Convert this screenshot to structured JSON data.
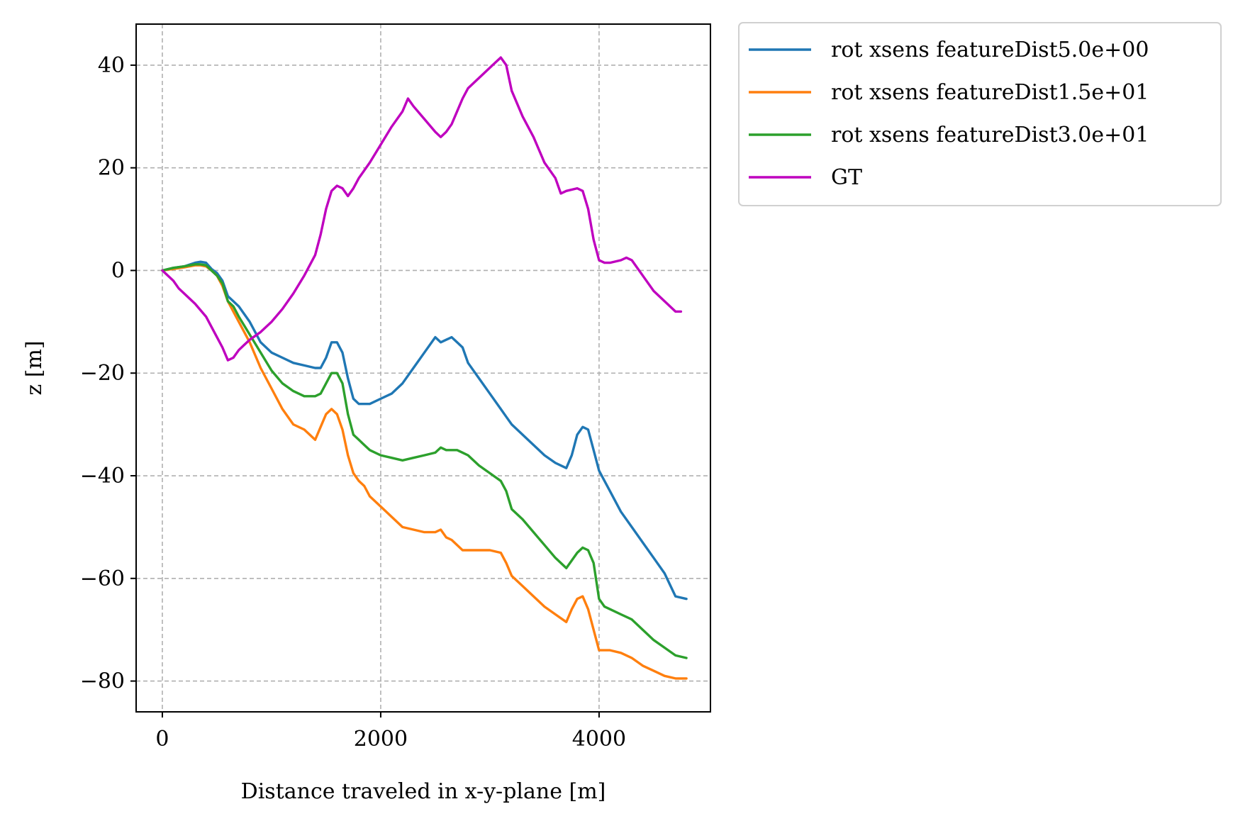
{
  "chart_data": {
    "type": "line",
    "xlabel": "Distance traveled in x-y-plane [m]",
    "ylabel": "z [m]",
    "xlim": [
      -240,
      5020
    ],
    "ylim": [
      -86,
      48
    ],
    "xticks": [
      0,
      2000,
      4000
    ],
    "yticks": [
      40,
      20,
      0,
      -20,
      -40,
      -60,
      -80
    ],
    "xtick_labels": [
      "0",
      "2000",
      "4000"
    ],
    "ytick_labels": [
      "40",
      "20",
      "0",
      "−20",
      "−40",
      "−60",
      "−80"
    ],
    "grid": true,
    "legend_position": "outside-top-right",
    "series": [
      {
        "name": "rot xsens featureDist5.0e+00",
        "color": "#1f77b4",
        "x": [
          0,
          100,
          200,
          300,
          350,
          400,
          450,
          500,
          550,
          600,
          650,
          700,
          800,
          900,
          1000,
          1100,
          1200,
          1300,
          1400,
          1450,
          1500,
          1550,
          1600,
          1650,
          1700,
          1750,
          1800,
          1850,
          1900,
          2000,
          2100,
          2200,
          2300,
          2400,
          2500,
          2550,
          2600,
          2650,
          2700,
          2750,
          2800,
          2900,
          3000,
          3100,
          3150,
          3200,
          3300,
          3400,
          3500,
          3600,
          3700,
          3750,
          3800,
          3850,
          3900,
          3950,
          4000,
          4050,
          4100,
          4200,
          4300,
          4400,
          4500,
          4600,
          4700,
          4800
        ],
        "y": [
          0,
          0.5,
          0.8,
          1.5,
          1.7,
          1.5,
          0.3,
          -0.5,
          -2,
          -5,
          -6,
          -7,
          -10,
          -14,
          -16,
          -17,
          -18,
          -18.5,
          -19,
          -19,
          -17,
          -14,
          -14,
          -16,
          -21,
          -25,
          -26,
          -26,
          -26,
          -25,
          -24,
          -22,
          -19,
          -16,
          -13,
          -14,
          -13.5,
          -13,
          -14,
          -15,
          -18,
          -21,
          -24,
          -27,
          -28.5,
          -30,
          -32,
          -34,
          -36,
          -37.5,
          -38.5,
          -36,
          -32,
          -30.5,
          -31,
          -35,
          -39,
          -41,
          -43,
          -47,
          -50,
          -53,
          -56,
          -59,
          -63.5,
          -64
        ]
      },
      {
        "name": "rot xsens featureDist1.5e+01",
        "color": "#ff7f0e",
        "x": [
          0,
          100,
          200,
          300,
          350,
          400,
          450,
          500,
          550,
          600,
          650,
          700,
          800,
          900,
          1000,
          1100,
          1200,
          1300,
          1400,
          1450,
          1500,
          1550,
          1600,
          1650,
          1700,
          1750,
          1800,
          1850,
          1900,
          2000,
          2100,
          2200,
          2300,
          2400,
          2500,
          2550,
          2600,
          2650,
          2700,
          2750,
          2800,
          2900,
          3000,
          3100,
          3150,
          3200,
          3300,
          3400,
          3500,
          3600,
          3700,
          3750,
          3800,
          3850,
          3900,
          3950,
          4000,
          4050,
          4100,
          4200,
          4300,
          4400,
          4500,
          4600,
          4700,
          4800
        ],
        "y": [
          0,
          0.3,
          0.6,
          1,
          1,
          0.8,
          0,
          -1,
          -3,
          -6,
          -8,
          -10,
          -14,
          -19,
          -23,
          -27,
          -30,
          -31,
          -33,
          -30.5,
          -28,
          -27,
          -28,
          -31,
          -36,
          -39.5,
          -41,
          -42,
          -44,
          -46,
          -48,
          -50,
          -50.5,
          -51,
          -51,
          -50.5,
          -52,
          -52.5,
          -53.5,
          -54.5,
          -54.5,
          -54.5,
          -54.5,
          -55,
          -57,
          -59.5,
          -61.5,
          -63.5,
          -65.5,
          -67,
          -68.5,
          -66,
          -64,
          -63.5,
          -66,
          -70,
          -74,
          -74,
          -74,
          -74.5,
          -75.5,
          -77,
          -78,
          -79,
          -79.5,
          -79.5
        ]
      },
      {
        "name": "rot xsens featureDist3.0e+01",
        "color": "#2ca02c",
        "x": [
          0,
          100,
          200,
          300,
          350,
          400,
          450,
          500,
          550,
          600,
          650,
          700,
          800,
          900,
          1000,
          1100,
          1200,
          1300,
          1400,
          1450,
          1500,
          1550,
          1600,
          1650,
          1700,
          1750,
          1800,
          1850,
          1900,
          2000,
          2100,
          2200,
          2300,
          2400,
          2500,
          2550,
          2600,
          2650,
          2700,
          2750,
          2800,
          2900,
          3000,
          3100,
          3150,
          3200,
          3300,
          3400,
          3500,
          3600,
          3700,
          3750,
          3800,
          3850,
          3900,
          3950,
          4000,
          4050,
          4100,
          4200,
          4300,
          4400,
          4500,
          4600,
          4700,
          4800
        ],
        "y": [
          0,
          0.5,
          0.8,
          1.2,
          1.2,
          1,
          0,
          -1,
          -2.5,
          -6,
          -7,
          -9,
          -12.5,
          -16,
          -19.5,
          -22,
          -23.5,
          -24.5,
          -24.5,
          -24,
          -22,
          -20,
          -20,
          -22,
          -28,
          -32,
          -33,
          -34,
          -35,
          -36,
          -36.5,
          -37,
          -36.5,
          -36,
          -35.5,
          -34.5,
          -35,
          -35,
          -35,
          -35.5,
          -36,
          -38,
          -39.5,
          -41,
          -43,
          -46.5,
          -48.5,
          -51,
          -53.5,
          -56,
          -58,
          -56.5,
          -55,
          -54,
          -54.5,
          -57,
          -64,
          -65.5,
          -66,
          -67,
          -68,
          -70,
          -72,
          -73.5,
          -75,
          -75.5
        ]
      },
      {
        "name": "GT",
        "color": "#bf00bf",
        "x": [
          0,
          100,
          150,
          200,
          300,
          400,
          450,
          500,
          550,
          600,
          650,
          700,
          750,
          800,
          900,
          1000,
          1100,
          1200,
          1300,
          1400,
          1450,
          1500,
          1550,
          1600,
          1650,
          1700,
          1750,
          1800,
          1900,
          2000,
          2100,
          2200,
          2250,
          2300,
          2400,
          2500,
          2550,
          2600,
          2650,
          2700,
          2750,
          2800,
          2900,
          3000,
          3050,
          3100,
          3150,
          3200,
          3300,
          3400,
          3500,
          3600,
          3650,
          3700,
          3800,
          3850,
          3900,
          3950,
          4000,
          4050,
          4100,
          4200,
          4250,
          4300,
          4400,
          4500,
          4600,
          4700,
          4750
        ],
        "y": [
          0,
          -2,
          -3.5,
          -4.5,
          -6.5,
          -9,
          -11,
          -13,
          -15,
          -17.5,
          -17,
          -15.5,
          -14.5,
          -13.5,
          -12,
          -10,
          -7.5,
          -4.5,
          -1,
          3,
          7,
          12,
          15.5,
          16.5,
          16,
          14.5,
          16,
          18,
          21,
          24.5,
          28,
          31,
          33.5,
          32,
          29.5,
          27,
          26,
          27,
          28.5,
          31,
          33.5,
          35.5,
          37.5,
          39.5,
          40.5,
          41.5,
          40,
          35,
          30,
          26,
          21,
          18,
          15,
          15.5,
          16,
          15.5,
          12,
          6,
          2,
          1.5,
          1.5,
          2,
          2.5,
          2,
          -1,
          -4,
          -6,
          -8,
          -8
        ]
      }
    ]
  }
}
